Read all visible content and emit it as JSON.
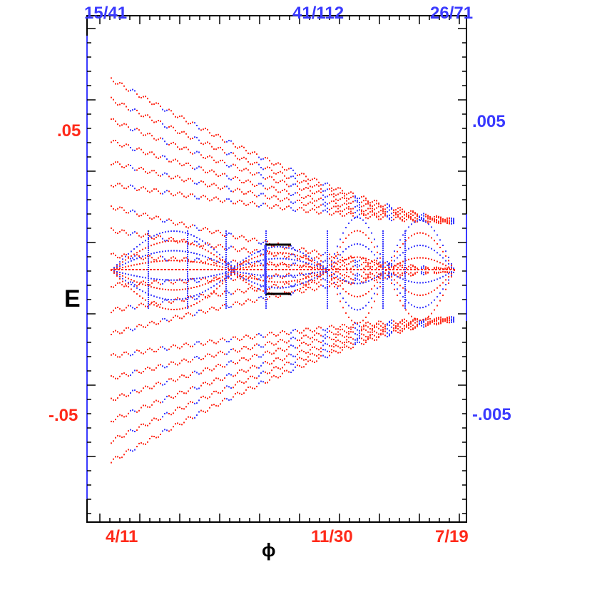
{
  "chart_data": {
    "type": "scatter",
    "xlabel": "ϕ",
    "ylabel": "E",
    "x_ticks_bottom": [
      "4/11",
      "11/30",
      "7/19"
    ],
    "x_ticks_top": [
      "15/41",
      "41/112",
      "26/71"
    ],
    "y_ticks_left": [
      ".05",
      "-.05"
    ],
    "y_ticks_right": [
      ".005",
      "-.005"
    ],
    "ylim_left": [
      -0.088,
      0.088
    ],
    "ylim_right": [
      -0.0088,
      0.0088
    ],
    "series": [
      {
        "color": "#ff2a1a"
      },
      {
        "color": "#3a3aff"
      }
    ],
    "grid": false
  },
  "colors": {
    "red_axis": "#ff2a1a",
    "blue_axis": "#3a3aff",
    "frame": "#000000"
  }
}
